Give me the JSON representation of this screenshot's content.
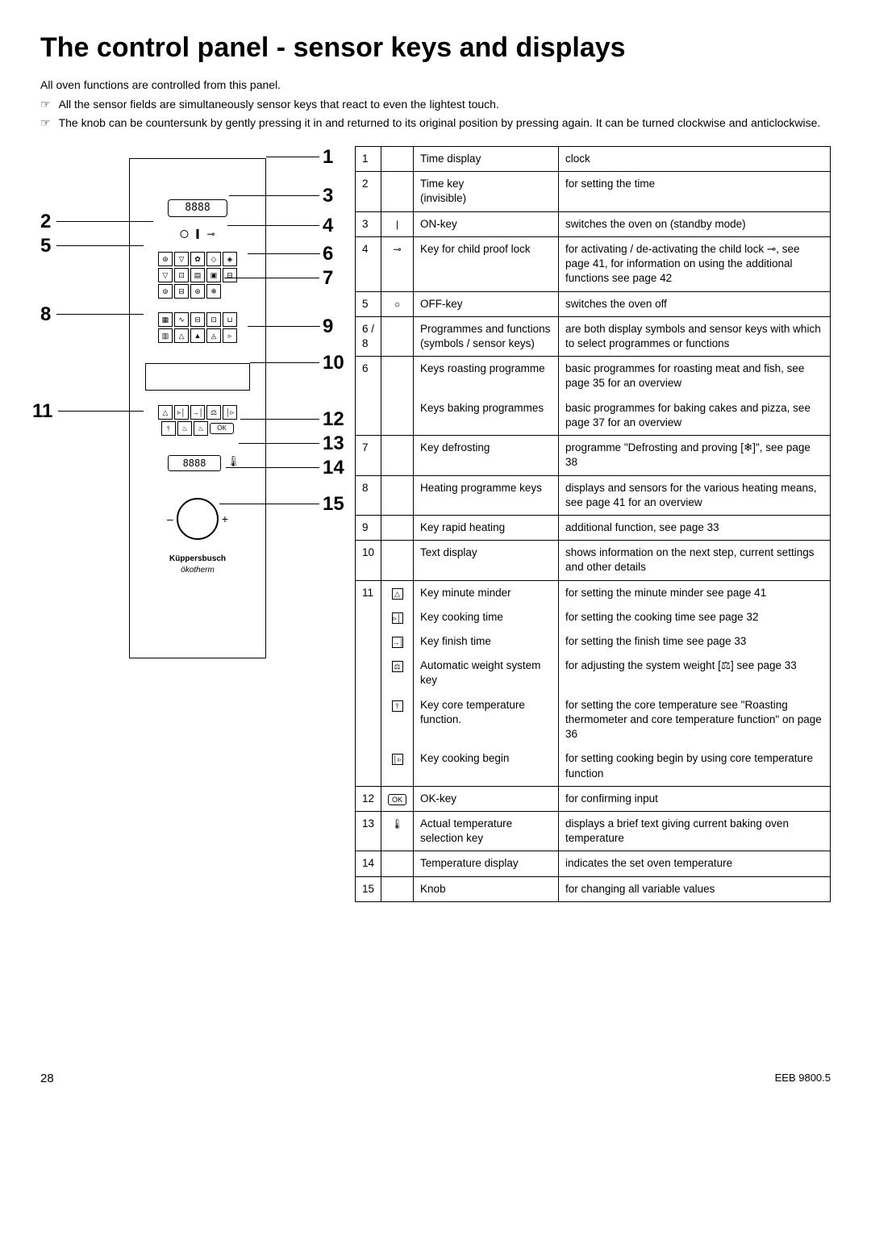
{
  "title": "The control panel - sensor keys and displays",
  "intro": "All oven functions are controlled from this panel.",
  "bullets": [
    "All the sensor fields are simultaneously sensor keys that react to even the lightest touch.",
    "The knob can be countersunk by gently pressing it in and returned to its original position by pressing again. It can be turned clockwise and anticlockwise."
  ],
  "diagram": {
    "display_text": "8888",
    "display2_text": "8888",
    "brand1": "Küppersbusch",
    "brand2": "ökotherm",
    "ok_label": "OK",
    "callouts_left": [
      "2",
      "5",
      "8",
      "11"
    ],
    "callouts_right": [
      "1",
      "3",
      "4",
      "6",
      "7",
      "9",
      "10",
      "12",
      "13",
      "14",
      "15"
    ]
  },
  "table": {
    "rows": [
      {
        "n": "1",
        "sym": "",
        "name": "Time display",
        "desc": "clock"
      },
      {
        "n": "2",
        "sym": "",
        "name": "Time key\n(invisible)",
        "desc": "for setting the time"
      },
      {
        "n": "3",
        "sym": "|",
        "name": "ON-key",
        "desc": "switches the oven on (standby mode)"
      },
      {
        "n": "4",
        "sym": "⊸",
        "name": "Key for child proof lock",
        "desc": "for activating / de-activating the child lock ⊸, see page 41, for information on using the additional functions see page  42"
      },
      {
        "n": "5",
        "sym": "○",
        "name": "OFF-key",
        "desc": "switches the oven off"
      },
      {
        "n": "6 / 8",
        "sym": "",
        "name": "Programmes and functions (symbols / sensor keys)",
        "desc": "are both display symbols and sensor keys with which to select programmes or functions"
      },
      {
        "n": "6",
        "sym": "",
        "name": "Keys roasting programme",
        "desc": "basic programmes for roasting meat and fish, see page 35 for an overview",
        "split": "top"
      },
      {
        "n": "",
        "sym": "",
        "name": "Keys baking programmes",
        "desc": "basic programmes for baking cakes and pizza, see page 37 for an overview",
        "split": "bottom"
      },
      {
        "n": "7",
        "sym": "",
        "name": "Key defrosting",
        "desc": "programme \"Defrosting and proving [❄]\", see page 38"
      },
      {
        "n": "8",
        "sym": "",
        "name": "Heating programme keys",
        "desc": "displays and sensors for the various heating means, see page 41 for an overview"
      },
      {
        "n": "9",
        "sym": "",
        "name": "Key rapid heating",
        "desc": "additional function, see page 33"
      },
      {
        "n": "10",
        "sym": "",
        "name": "Text display",
        "desc": "shows information on the next step, current settings and other details"
      },
      {
        "n": "11",
        "sym": "",
        "name": "",
        "desc": "",
        "group": "start"
      },
      {
        "n": "12",
        "sym": "OK",
        "name": "OK-key",
        "desc": "for confirming input"
      },
      {
        "n": "13",
        "sym": "🌡",
        "name": "Actual temperature selection key",
        "desc": "displays a brief text giving current baking oven temperature"
      },
      {
        "n": "14",
        "sym": "",
        "name": "Temperature display",
        "desc": "indicates the set oven temperature"
      },
      {
        "n": "15",
        "sym": "",
        "name": "Knob",
        "desc": "for changing all variable values"
      }
    ],
    "group11": [
      {
        "sym": "△",
        "name": "Key minute minder",
        "desc": "for setting the minute minder see page 41"
      },
      {
        "sym": "▹│",
        "name": "Key cooking time",
        "desc": "for setting the cooking time see page 32"
      },
      {
        "sym": "→│",
        "name": "Key finish time",
        "desc": "for setting the finish time see page 33"
      },
      {
        "sym": "⚖",
        "name": "Automatic weight system key",
        "desc": "for adjusting the system weight [⚖] see page 33"
      },
      {
        "sym": "⫯",
        "name": "Key core temperature function.",
        "desc": "for setting the core temperature see \"Roasting thermometer and core temperature function\" on page 36"
      },
      {
        "sym": "│▹",
        "name": "Key cooking begin",
        "desc": "for setting cooking begin by using core temperature function"
      }
    ]
  },
  "footer": {
    "page": "28",
    "model": "EEB 9800.5"
  }
}
